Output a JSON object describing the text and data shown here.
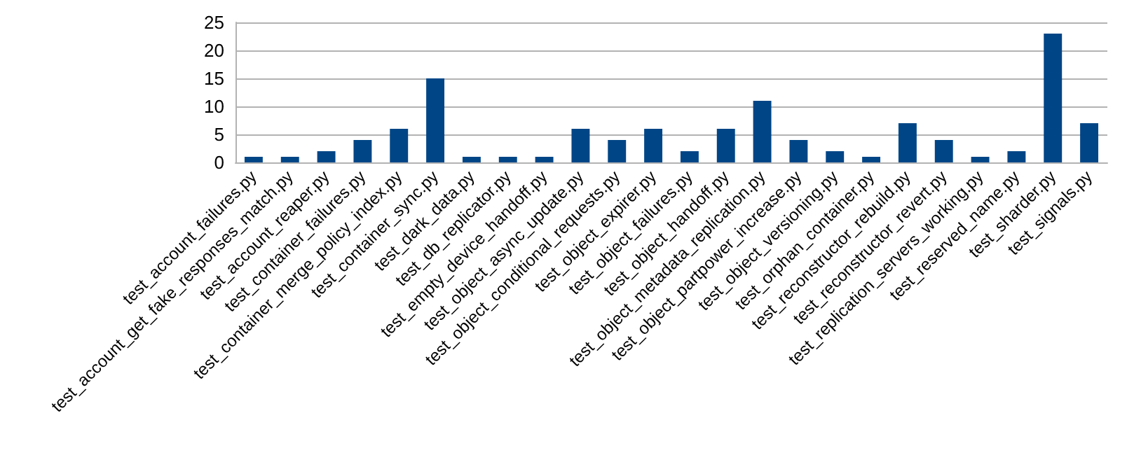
{
  "chart_data": {
    "type": "bar",
    "categories": [
      "test_account_failures.py",
      "test_account_get_fake_responses_match.py",
      "test_account_reaper.py",
      "test_container_failures.py",
      "test_container_merge_policy_index.py",
      "test_container_sync.py",
      "test_dark_data.py",
      "test_db_replicator.py",
      "test_empty_device_handoff.py",
      "test_object_async_update.py",
      "test_object_conditional_requests.py",
      "test_object_expirer.py",
      "test_object_failures.py",
      "test_object_handoff.py",
      "test_object_metadata_replication.py",
      "test_object_partpower_increase.py",
      "test_object_versioning.py",
      "test_orphan_container.py",
      "test_reconstructor_rebuild.py",
      "test_reconstructor_revert.py",
      "test_replication_servers_working.py",
      "test_reserved_name.py",
      "test_sharder.py",
      "test_signals.py"
    ],
    "values": [
      1,
      1,
      2,
      4,
      6,
      15,
      1,
      1,
      1,
      6,
      4,
      6,
      2,
      6,
      11,
      4,
      2,
      1,
      7,
      4,
      1,
      2,
      23,
      7
    ],
    "color": "#004586",
    "ylim": [
      0,
      25
    ],
    "yticks": [
      0,
      5,
      10,
      15,
      20,
      25
    ],
    "grid": "y"
  }
}
